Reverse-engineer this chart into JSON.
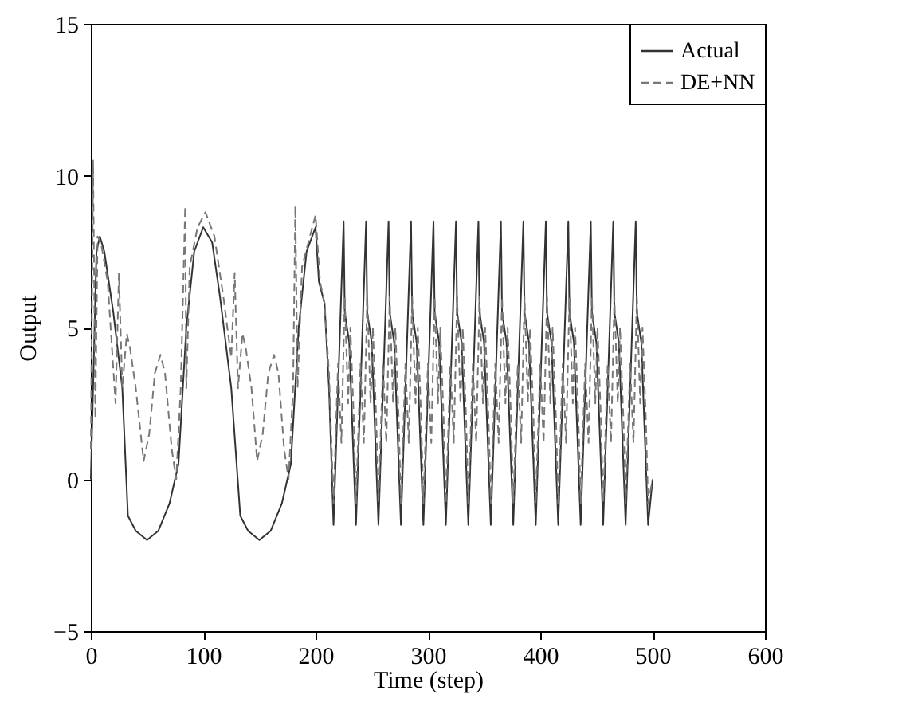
{
  "chart_data": {
    "type": "line",
    "xlabel": "Time (step)",
    "ylabel": "Output",
    "xlim": [
      0,
      600
    ],
    "xticks": [
      0,
      100,
      200,
      300,
      400,
      500,
      600
    ],
    "ylim": [
      -5,
      15
    ],
    "yticks": [
      -5,
      0,
      5,
      10,
      15
    ],
    "grid": false,
    "legend": "top right",
    "series": [
      {
        "name": "Actual",
        "color": "#333333",
        "line_style": "solid",
        "x": [
          0,
          2,
          5,
          8,
          12,
          20,
          28,
          33,
          40,
          50,
          60,
          70,
          78,
          85,
          92,
          100,
          108,
          115,
          125,
          133,
          140,
          150,
          160,
          170,
          178,
          185,
          192,
          200,
          203,
          208,
          212,
          216,
          225,
          226,
          230,
          236,
          245,
          246,
          250,
          256,
          265,
          266,
          270,
          276,
          285,
          286,
          290,
          296,
          305,
          306,
          310,
          316,
          325,
          326,
          330,
          336,
          345,
          346,
          350,
          356,
          365,
          366,
          370,
          376,
          385,
          386,
          390,
          396,
          405,
          406,
          410,
          416,
          425,
          426,
          430,
          436,
          445,
          446,
          450,
          456,
          465,
          466,
          470,
          476,
          485,
          486,
          490,
          496,
          500
        ],
        "values": [
          0,
          3,
          7.5,
          8,
          7.5,
          5.5,
          3,
          -1.2,
          -1.7,
          -2,
          -1.7,
          -0.8,
          0.5,
          5,
          7.5,
          8.3,
          7.8,
          6,
          3,
          -1.2,
          -1.7,
          -2,
          -1.7,
          -0.8,
          0.5,
          5,
          7.5,
          8.3,
          6.5,
          5.8,
          3,
          -1.5,
          8.5,
          5.5,
          4.5,
          -1.5,
          8.5,
          5.5,
          4.5,
          -1.5,
          8.5,
          5.5,
          4.5,
          -1.5,
          8.5,
          5.5,
          4.5,
          -1.5,
          8.5,
          5.5,
          4.5,
          -1.5,
          8.5,
          5.5,
          4.5,
          -1.5,
          8.5,
          5.5,
          4.5,
          -1.5,
          8.5,
          5.5,
          4.5,
          -1.5,
          8.5,
          5.5,
          4.5,
          -1.5,
          8.5,
          5.5,
          4.5,
          -1.5,
          8.5,
          5.5,
          4.5,
          -1.5,
          8.5,
          5.5,
          4.5,
          -1.5,
          8.5,
          5.5,
          4.5,
          -1.5,
          8.5,
          5.5,
          4.5,
          -1.5,
          0
        ]
      },
      {
        "name": "DE+NN",
        "color": "#777777",
        "line_style": "dashed",
        "x": [
          0,
          2,
          4,
          6,
          9,
          15,
          22,
          25,
          28,
          32,
          35,
          40,
          47,
          52,
          57,
          62,
          66,
          72,
          76,
          80,
          82,
          84,
          85,
          88,
          95,
          102,
          110,
          118,
          125,
          128,
          131,
          135,
          138,
          143,
          148,
          153,
          158,
          163,
          167,
          172,
          176,
          180,
          182,
          184,
          188,
          195,
          200,
          204,
          208,
          212,
          216,
          220,
          223,
          226,
          229,
          231,
          234,
          236,
          240,
          243,
          246,
          249,
          251,
          254,
          256,
          260,
          263,
          266,
          269,
          271,
          274,
          276,
          280,
          283,
          286,
          289,
          291,
          294,
          296,
          300,
          303,
          306,
          309,
          311,
          314,
          316,
          320,
          323,
          326,
          329,
          331,
          334,
          336,
          340,
          343,
          346,
          349,
          351,
          354,
          356,
          360,
          363,
          366,
          369,
          371,
          374,
          376,
          380,
          383,
          386,
          389,
          391,
          394,
          396,
          400,
          403,
          406,
          409,
          411,
          414,
          416,
          420,
          423,
          426,
          429,
          431,
          434,
          436,
          440,
          443,
          446,
          449,
          451,
          454,
          456,
          460,
          463,
          466,
          469,
          471,
          474,
          476,
          480,
          483,
          486,
          489,
          491,
          494,
          496,
          500
        ],
        "values": [
          1,
          10.5,
          2,
          8,
          7.8,
          6.5,
          2.5,
          6.8,
          3,
          4.8,
          4.3,
          3,
          0.6,
          1.5,
          3.5,
          4.1,
          3.5,
          1,
          0,
          3,
          6,
          9,
          3,
          7,
          8.3,
          8.8,
          8,
          6,
          4,
          6.8,
          3,
          4.8,
          4.3,
          3,
          0.6,
          1.5,
          3.5,
          4.1,
          3.5,
          1,
          0,
          3,
          9,
          3,
          7,
          8,
          8.7,
          6.5,
          5.8,
          3.5,
          -0.8,
          3.8,
          1.2,
          6,
          2.5,
          5,
          2,
          -0.8,
          3.8,
          1.2,
          6,
          2.5,
          5,
          2,
          -0.8,
          3.8,
          1.2,
          6,
          2.5,
          5,
          2,
          -0.8,
          3.8,
          1.2,
          6,
          2.5,
          5,
          2,
          -0.8,
          3.8,
          1.2,
          6,
          2.5,
          5,
          2,
          -0.8,
          3.8,
          1.2,
          6,
          2.5,
          5,
          2,
          -0.8,
          3.8,
          1.2,
          6,
          2.5,
          5,
          2,
          -0.8,
          3.8,
          1.2,
          6,
          2.5,
          5,
          2,
          -0.8,
          3.8,
          1.2,
          6,
          2.5,
          5,
          2,
          -0.8,
          3.8,
          1.2,
          6,
          2.5,
          5,
          2,
          -0.8,
          3.8,
          1.2,
          6,
          2.5,
          5,
          2,
          -0.8,
          3.8,
          1.2,
          6,
          2.5,
          5,
          2,
          -0.8,
          3.8,
          1.2,
          6,
          2.5,
          5,
          2,
          -0.8,
          3.8,
          1.2,
          6,
          2.5,
          5,
          2,
          -0.8,
          0
        ]
      }
    ]
  }
}
